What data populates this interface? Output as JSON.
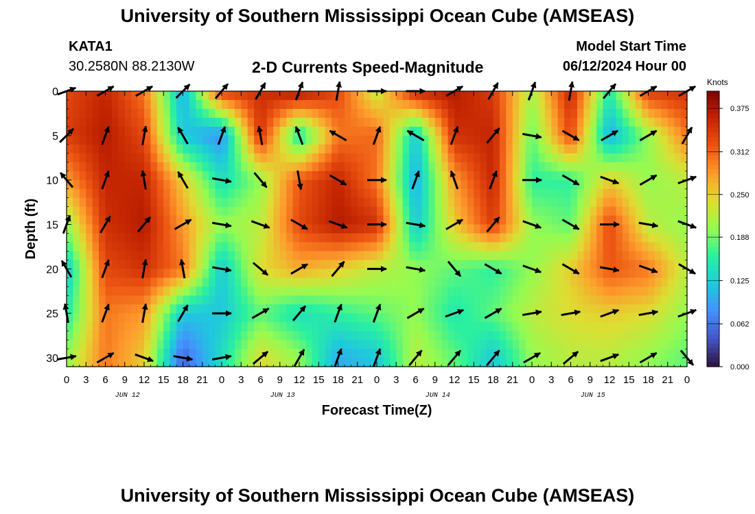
{
  "header": {
    "title": "University of Southern Mississippi Ocean Cube (AMSEAS)",
    "station_id": "KATA1",
    "station_coords": "30.2580N  88.2130W",
    "chart_heading": "2-D Currents Speed-Magnitude",
    "model_label": "Model Start Time",
    "model_time": "06/12/2024 Hour 00"
  },
  "footer": {
    "title": "University of Southern Mississippi Ocean Cube (AMSEAS)"
  },
  "colorbar": {
    "units": "Knots",
    "ticks": [
      "0.375",
      "0.312",
      "0.250",
      "0.188",
      "0.125",
      "0.062",
      "0.000"
    ],
    "min": 0.0,
    "max": 0.4
  },
  "chart_data": {
    "type": "heatmap",
    "title": "2-D Currents Speed-Magnitude",
    "xlabel": "Forecast Time(Z)",
    "ylabel": "Depth (ft)",
    "x_ticks": [
      "0",
      "3",
      "6",
      "9",
      "12",
      "15",
      "18",
      "21",
      "0",
      "3",
      "6",
      "9",
      "12",
      "15",
      "18",
      "21",
      "0",
      "3",
      "6",
      "9",
      "12",
      "15",
      "18",
      "21",
      "0",
      "3",
      "6",
      "9",
      "12",
      "15",
      "18",
      "21",
      "0"
    ],
    "day_labels": [
      "JUN 12",
      "JUN 13",
      "JUN 14",
      "JUN 15"
    ],
    "y_ticks": [
      "0",
      "5",
      "10",
      "15",
      "20",
      "25",
      "30"
    ],
    "xlim_hours": [
      0,
      96
    ],
    "ylim_ft": [
      0,
      31
    ],
    "y_inverted": true,
    "speed_units": "Knots",
    "speed_range": [
      0.0,
      0.4
    ],
    "times_hours": [
      0,
      6,
      12,
      18,
      24,
      30,
      36,
      42,
      48,
      54,
      60,
      66,
      72,
      78,
      84,
      90,
      96
    ],
    "depths_ft": [
      0,
      5,
      10,
      15,
      20,
      25,
      30
    ],
    "speed_knots": [
      [
        0.33,
        0.36,
        0.3,
        0.1,
        0.34,
        0.35,
        0.38,
        0.33,
        0.22,
        0.36,
        0.37,
        0.34,
        0.21,
        0.36,
        0.15,
        0.34,
        0.35
      ],
      [
        0.34,
        0.37,
        0.33,
        0.12,
        0.08,
        0.35,
        0.14,
        0.3,
        0.31,
        0.12,
        0.35,
        0.36,
        0.18,
        0.33,
        0.1,
        0.2,
        0.3
      ],
      [
        0.28,
        0.36,
        0.36,
        0.25,
        0.14,
        0.2,
        0.32,
        0.36,
        0.3,
        0.1,
        0.28,
        0.36,
        0.16,
        0.16,
        0.25,
        0.2,
        0.22
      ],
      [
        0.2,
        0.35,
        0.37,
        0.28,
        0.2,
        0.22,
        0.33,
        0.37,
        0.35,
        0.12,
        0.25,
        0.34,
        0.2,
        0.18,
        0.33,
        0.22,
        0.2
      ],
      [
        0.12,
        0.33,
        0.35,
        0.3,
        0.12,
        0.24,
        0.27,
        0.25,
        0.22,
        0.2,
        0.18,
        0.16,
        0.2,
        0.25,
        0.32,
        0.3,
        0.22
      ],
      [
        0.15,
        0.3,
        0.28,
        0.12,
        0.12,
        0.18,
        0.14,
        0.16,
        0.18,
        0.2,
        0.15,
        0.18,
        0.22,
        0.24,
        0.25,
        0.24,
        0.2
      ],
      [
        0.2,
        0.3,
        0.25,
        0.05,
        0.14,
        0.24,
        0.2,
        0.1,
        0.12,
        0.22,
        0.18,
        0.12,
        0.2,
        0.22,
        0.22,
        0.2,
        0.18
      ]
    ],
    "direction_deg": [
      [
        70,
        60,
        60,
        45,
        40,
        30,
        20,
        10,
        90,
        90,
        60,
        30,
        20,
        10,
        40,
        60,
        60
      ],
      [
        45,
        20,
        10,
        330,
        20,
        350,
        340,
        300,
        20,
        300,
        20,
        40,
        100,
        120,
        60,
        60,
        30
      ],
      [
        320,
        20,
        350,
        330,
        100,
        140,
        170,
        120,
        90,
        20,
        340,
        20,
        90,
        120,
        110,
        60,
        70
      ],
      [
        20,
        30,
        40,
        60,
        100,
        110,
        120,
        110,
        90,
        100,
        60,
        40,
        110,
        120,
        90,
        100,
        110
      ],
      [
        330,
        20,
        10,
        350,
        100,
        130,
        60,
        40,
        90,
        100,
        140,
        120,
        110,
        120,
        100,
        110,
        120
      ],
      [
        350,
        20,
        10,
        30,
        90,
        60,
        40,
        20,
        20,
        60,
        70,
        60,
        80,
        80,
        70,
        80,
        70
      ],
      [
        80,
        60,
        110,
        100,
        80,
        50,
        30,
        20,
        20,
        40,
        40,
        40,
        60,
        50,
        70,
        60,
        140
      ]
    ]
  },
  "colors": {
    "colormap": [
      "#30123b",
      "#4454c4",
      "#4490fe",
      "#1fc9dd",
      "#2af0a0",
      "#95fb51",
      "#dedd32",
      "#fe9b2d",
      "#ec5512",
      "#c42502",
      "#7a0403"
    ]
  }
}
